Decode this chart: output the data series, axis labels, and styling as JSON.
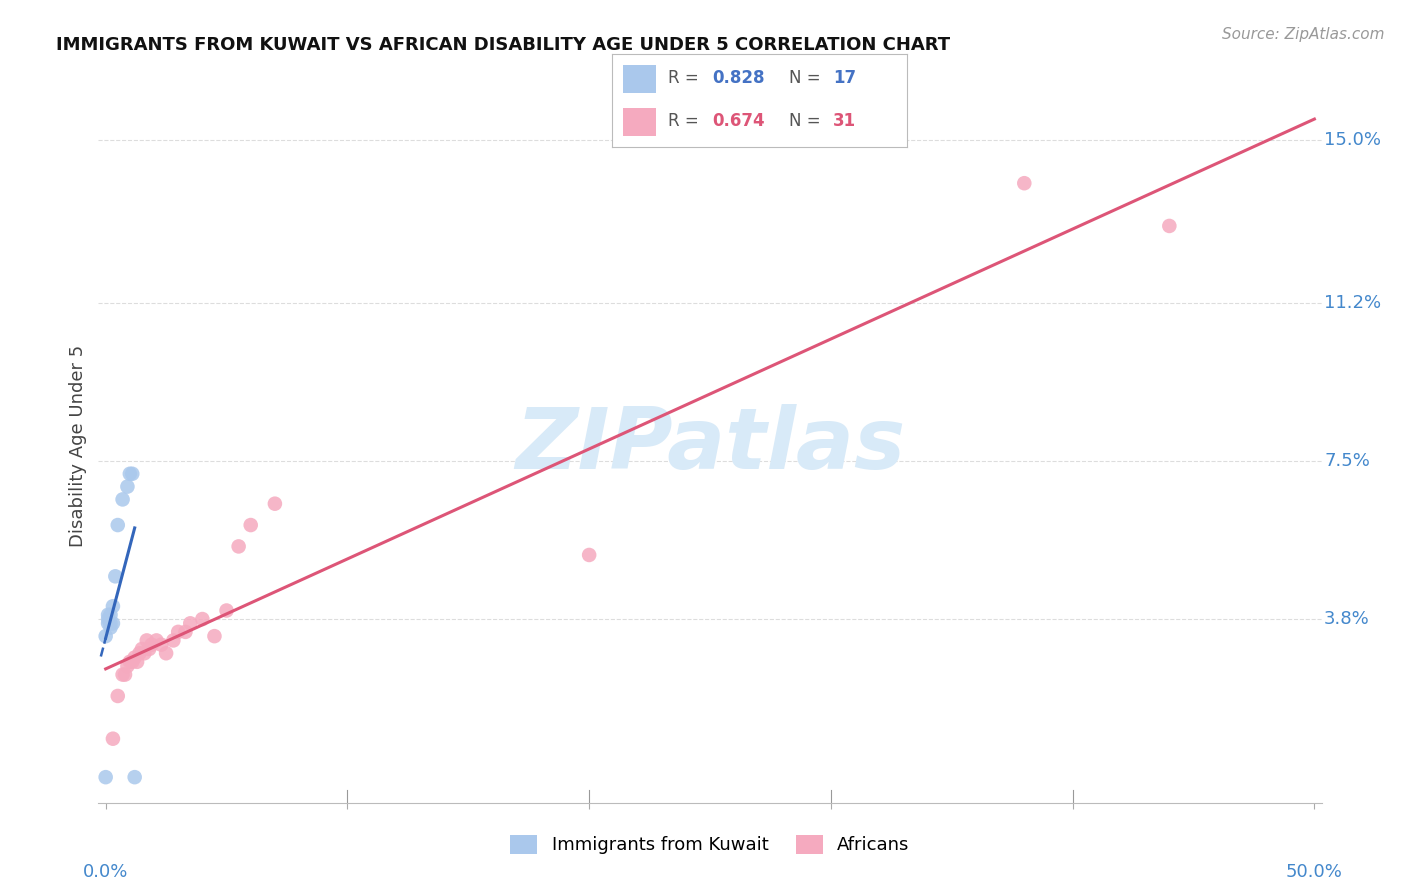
{
  "title": "IMMIGRANTS FROM KUWAIT VS AFRICAN DISABILITY AGE UNDER 5 CORRELATION CHART",
  "source": "Source: ZipAtlas.com",
  "ylabel": "Disability Age Under 5",
  "ytick_values": [
    0.0,
    0.038,
    0.075,
    0.112,
    0.15
  ],
  "ytick_labels": [
    "",
    "3.8%",
    "7.5%",
    "11.2%",
    "15.0%"
  ],
  "xlim": [
    -0.003,
    0.503
  ],
  "ylim": [
    -0.005,
    0.162
  ],
  "blue_R": "0.828",
  "blue_N": "17",
  "pink_R": "0.674",
  "pink_N": "31",
  "blue_dots_x": [
    0.0,
    0.0,
    0.001,
    0.001,
    0.001,
    0.002,
    0.002,
    0.002,
    0.003,
    0.003,
    0.004,
    0.005,
    0.007,
    0.009,
    0.01,
    0.011,
    0.012
  ],
  "blue_dots_y": [
    0.001,
    0.034,
    0.037,
    0.038,
    0.039,
    0.036,
    0.037,
    0.039,
    0.037,
    0.041,
    0.048,
    0.06,
    0.066,
    0.069,
    0.072,
    0.072,
    0.001
  ],
  "pink_dots_x": [
    0.003,
    0.005,
    0.007,
    0.008,
    0.009,
    0.01,
    0.011,
    0.012,
    0.013,
    0.014,
    0.015,
    0.016,
    0.017,
    0.018,
    0.019,
    0.021,
    0.023,
    0.025,
    0.028,
    0.03,
    0.033,
    0.035,
    0.04,
    0.045,
    0.05,
    0.055,
    0.06,
    0.07,
    0.2,
    0.38,
    0.44
  ],
  "pink_dots_y": [
    0.01,
    0.02,
    0.025,
    0.025,
    0.027,
    0.028,
    0.028,
    0.029,
    0.028,
    0.03,
    0.031,
    0.03,
    0.033,
    0.031,
    0.032,
    0.033,
    0.032,
    0.03,
    0.033,
    0.035,
    0.035,
    0.037,
    0.038,
    0.034,
    0.04,
    0.055,
    0.06,
    0.065,
    0.053,
    0.14,
    0.13
  ],
  "blue_line_color": "#3366bb",
  "pink_line_color": "#dd5577",
  "blue_dot_color": "#aac8ec",
  "pink_dot_color": "#f5aabf",
  "watermark_color": "#d8eaf8",
  "background_color": "#ffffff",
  "grid_color": "#dddddd",
  "blue_label": "Immigrants from Kuwait",
  "pink_label": "Africans",
  "title_fontsize": 13,
  "label_fontsize": 13,
  "tick_fontsize": 13,
  "legend_fontsize": 12,
  "source_fontsize": 11
}
